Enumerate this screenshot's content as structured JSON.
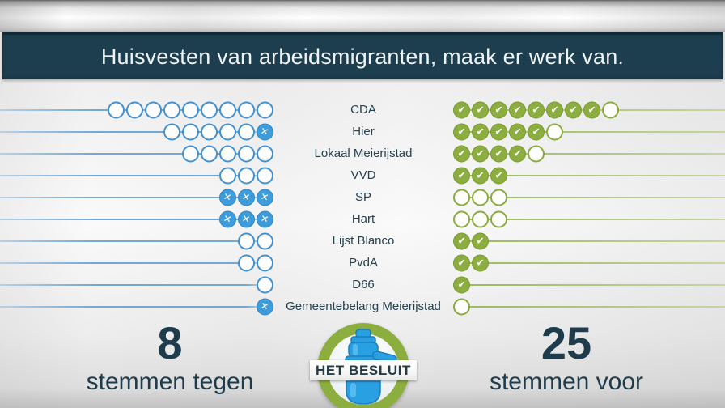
{
  "header": {
    "title": "Huisvesten van arbeidsmigranten, maak er werk van."
  },
  "chart_data": {
    "type": "table",
    "title": "Huisvesten van arbeidsmigranten, maak er werk van.",
    "description": "Council vote tally per party: left dots = seats with X marking votes against, right dots = seats with check marking votes for",
    "parties": [
      {
        "name": "CDA",
        "seats": 9,
        "against": 0,
        "for": 8
      },
      {
        "name": "Hier",
        "seats": 6,
        "against": 1,
        "for": 5
      },
      {
        "name": "Lokaal Meierijstad",
        "seats": 5,
        "against": 0,
        "for": 4
      },
      {
        "name": "VVD",
        "seats": 3,
        "against": 0,
        "for": 3
      },
      {
        "name": "SP",
        "seats": 3,
        "against": 3,
        "for": 0
      },
      {
        "name": "Hart",
        "seats": 3,
        "against": 3,
        "for": 0
      },
      {
        "name": "Lijst Blanco",
        "seats": 2,
        "against": 0,
        "for": 2
      },
      {
        "name": "PvdA",
        "seats": 2,
        "against": 0,
        "for": 2
      },
      {
        "name": "D66",
        "seats": 1,
        "against": 0,
        "for": 1
      },
      {
        "name": "Gemeentebelang Meierijstad",
        "seats": 1,
        "against": 1,
        "for": 0
      }
    ],
    "totals": {
      "against": 8,
      "for": 25
    }
  },
  "footer": {
    "against_count": "8",
    "against_label": "stemmen tegen",
    "for_count": "25",
    "for_label": "stemmen voor"
  },
  "logo": {
    "text": "HET BESLUIT"
  },
  "icons": {
    "against_mark": "✕",
    "for_mark": "✔"
  },
  "colors": {
    "header_bg": "#1d3e4e",
    "against_blue": "#3f9cdb",
    "for_green": "#8cad3f",
    "line_blue": "#73a8d3",
    "line_green": "#b3c785",
    "text_dark": "#1e3c4c"
  }
}
